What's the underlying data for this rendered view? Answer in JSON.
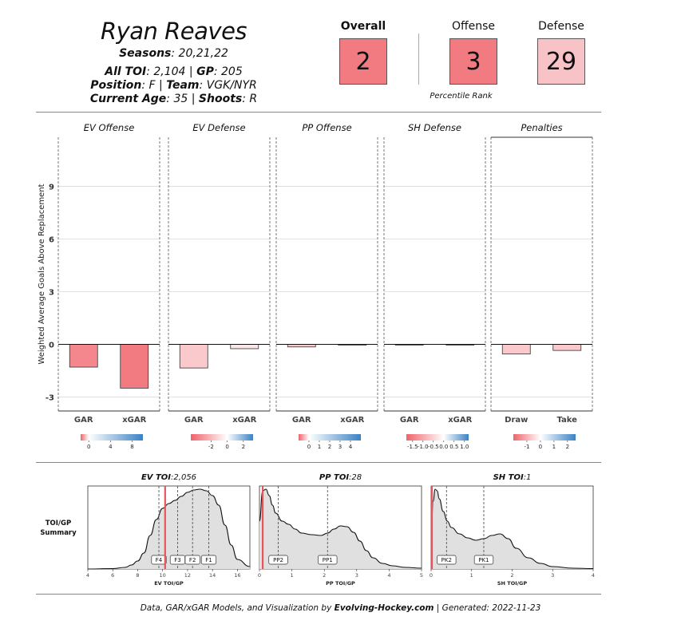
{
  "header": {
    "player_name": "Ryan Reaves",
    "seasons_label": "Seasons",
    "seasons_value": ": 20,21,22",
    "toi_label": "All TOI",
    "toi_value": ": 2,104 | ",
    "gp_label": "GP",
    "gp_value": ": 205",
    "position_label": "Position",
    "position_value": ": F | ",
    "team_label": "Team",
    "team_value": ": VGK/NYR",
    "age_label": "Current Age",
    "age_value": ": 35 | ",
    "shoots_label": "Shoots",
    "shoots_value": ": R"
  },
  "ranks": {
    "overall_label": "Overall",
    "overall_value": "2",
    "overall_color": "#f27b81",
    "offense_label": "Offense",
    "offense_value": "3",
    "offense_color": "#f27b81",
    "defense_label": "Defense",
    "defense_value": "29",
    "defense_color": "#f8c3c6",
    "footnote": "Percentile Rank"
  },
  "chart_data": [
    {
      "type": "bar",
      "ylabel": "Weighted Average Goals Above Replacement",
      "ylim": [
        -3.8,
        11.8
      ],
      "yticks": [
        -3,
        0,
        3,
        6,
        9
      ],
      "grid": true,
      "panels": [
        {
          "title": "EV Offense",
          "categories": [
            "GAR",
            "xGAR"
          ],
          "values": [
            -1.3,
            -2.5
          ],
          "colors": [
            "#f4878d",
            "#f27b81"
          ],
          "legend_ticks": [
            "0",
            "4",
            "8"
          ],
          "legend_tick_values": [
            0,
            4,
            8
          ],
          "legend_range": [
            -1.5,
            10
          ]
        },
        {
          "title": "EV Defense",
          "categories": [
            "GAR",
            "xGAR"
          ],
          "values": [
            -1.35,
            -0.25
          ],
          "colors": [
            "#f9c9cc",
            "#fce7e8"
          ],
          "legend_ticks": [
            "-2",
            "0",
            "2"
          ],
          "legend_tick_values": [
            -2,
            0,
            2
          ],
          "legend_range": [
            -4.5,
            3.2
          ]
        },
        {
          "title": "PP Offense",
          "categories": [
            "GAR",
            "xGAR"
          ],
          "values": [
            -0.15,
            -0.05
          ],
          "colors": [
            "#f9c9cc",
            "#fce7e8"
          ],
          "legend_ticks": [
            "0",
            "1",
            "2",
            "3",
            "4"
          ],
          "legend_tick_values": [
            0,
            1,
            2,
            3,
            4
          ],
          "legend_range": [
            -1,
            5
          ]
        },
        {
          "title": "SH Defense",
          "categories": [
            "GAR",
            "xGAR"
          ],
          "values": [
            0,
            0
          ],
          "colors": [
            "#ffffff",
            "#ffffff"
          ],
          "legend_ticks": [
            "-1.5",
            "-1.0",
            "-0.5",
            "0.0",
            "0.5",
            "1.0"
          ],
          "legend_tick_values": [
            -1.5,
            -1.0,
            -0.5,
            0.0,
            0.5,
            1.0
          ],
          "legend_range": [
            -1.8,
            1.2
          ]
        },
        {
          "title": "Penalties",
          "categories": [
            "Draw",
            "Take"
          ],
          "values": [
            -0.55,
            -0.35
          ],
          "colors": [
            "#f9c9cc",
            "#f9c9cc"
          ],
          "legend_ticks": [
            "-1",
            "0",
            "1",
            "2"
          ],
          "legend_tick_values": [
            -1,
            0,
            1,
            2
          ],
          "legend_range": [
            -2,
            2.6
          ]
        }
      ]
    },
    {
      "type": "area",
      "row_label": [
        "TOI/GP",
        "Summary"
      ],
      "panels": [
        {
          "title_label": "EV TOI",
          "title_value": ":2,056",
          "xlabel": "EV TOI/GP",
          "xlim": [
            4,
            17
          ],
          "xticks": [
            4,
            6,
            8,
            10,
            12,
            14,
            16
          ],
          "player_value": 10.2,
          "markers": [
            {
              "label": "F4",
              "x": 9.7
            },
            {
              "label": "F3",
              "x": 11.2
            },
            {
              "label": "F2",
              "x": 12.4
            },
            {
              "label": "F1",
              "x": 13.7
            }
          ],
          "density_x": [
            4,
            6,
            7,
            7.5,
            8,
            8.5,
            9,
            9.5,
            10,
            10.5,
            11,
            11.5,
            12,
            12.5,
            13,
            13.5,
            14,
            14.5,
            15,
            15.5,
            16,
            17
          ],
          "density_y": [
            0,
            0.005,
            0.02,
            0.05,
            0.1,
            0.2,
            0.42,
            0.62,
            0.76,
            0.82,
            0.86,
            0.91,
            0.96,
            0.99,
            1.0,
            0.98,
            0.92,
            0.8,
            0.55,
            0.3,
            0.12,
            0.03
          ]
        },
        {
          "title_label": "PP TOI",
          "title_value": ":28",
          "xlabel": "PP TOI/GP",
          "xlim": [
            0,
            5
          ],
          "xticks": [
            0,
            1,
            2,
            3,
            4,
            5
          ],
          "player_value": 0.1,
          "markers": [
            {
              "label": "PP2",
              "x": 0.58
            },
            {
              "label": "PP1",
              "x": 2.1
            }
          ],
          "density_x": [
            0,
            0.1,
            0.2,
            0.3,
            0.4,
            0.5,
            0.7,
            0.9,
            1.1,
            1.3,
            1.6,
            1.9,
            2.1,
            2.3,
            2.5,
            2.7,
            2.9,
            3.1,
            3.3,
            3.5,
            3.8,
            4.1,
            4.5,
            5
          ],
          "density_y": [
            0.6,
            0.98,
            1.0,
            0.92,
            0.8,
            0.7,
            0.6,
            0.56,
            0.5,
            0.45,
            0.43,
            0.42,
            0.45,
            0.5,
            0.54,
            0.53,
            0.46,
            0.35,
            0.23,
            0.14,
            0.07,
            0.04,
            0.02,
            0.01
          ]
        },
        {
          "title_label": "SH TOI",
          "title_value": ":1",
          "xlabel": "SH TOI/GP",
          "xlim": [
            0,
            4
          ],
          "xticks": [
            0,
            1,
            2,
            3,
            4
          ],
          "player_value": 0.02,
          "markers": [
            {
              "label": "PK2",
              "x": 0.38
            },
            {
              "label": "PK1",
              "x": 1.3
            }
          ],
          "density_x": [
            0,
            0.05,
            0.1,
            0.15,
            0.2,
            0.3,
            0.4,
            0.5,
            0.7,
            0.9,
            1.1,
            1.3,
            1.5,
            1.7,
            1.9,
            2.1,
            2.4,
            2.7,
            3.0,
            3.5,
            4
          ],
          "density_y": [
            0.4,
            0.85,
            1.0,
            0.98,
            0.88,
            0.72,
            0.6,
            0.52,
            0.44,
            0.39,
            0.36,
            0.38,
            0.42,
            0.44,
            0.38,
            0.26,
            0.14,
            0.07,
            0.03,
            0.01,
            0.005
          ]
        }
      ]
    }
  ],
  "footer": {
    "prefix": "Data, GAR/xGAR Models, and Visualization by ",
    "brand": "Evolving-Hockey.com",
    "suffix": " | Generated: 2022-11-23"
  }
}
